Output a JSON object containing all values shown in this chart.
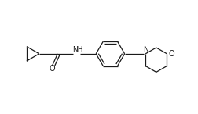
{
  "background_color": "#ffffff",
  "line_color": "#1a1a1a",
  "line_width": 0.9,
  "font_size": 6.5,
  "figsize": [
    2.53,
    1.46
  ],
  "dpi": 100,
  "xlim": [
    0,
    10
  ],
  "ylim": [
    0,
    5.77
  ]
}
